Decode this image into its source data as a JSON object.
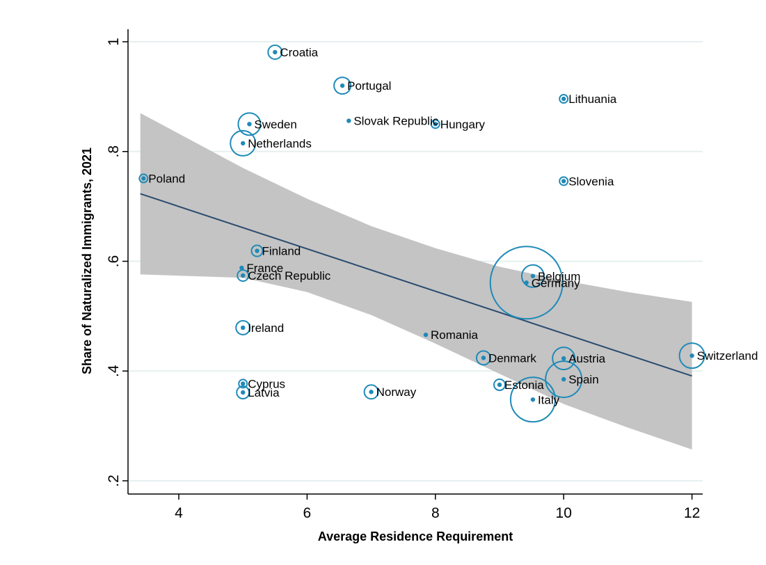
{
  "chart_data": {
    "type": "scatter",
    "title": "",
    "xlabel": "Average Residence Requirement",
    "ylabel": "Share of Naturalized Immigrants, 2021",
    "xlim": [
      3.3,
      12.2
    ],
    "ylim": [
      0.18,
      1.02
    ],
    "xticks": [
      4,
      6,
      8,
      10,
      12
    ],
    "xtick_labels": [
      "4",
      "6",
      "8",
      "10",
      "12"
    ],
    "yticks": [
      0.2,
      0.4,
      0.6,
      0.8,
      1.0
    ],
    "ytick_labels": [
      ".2",
      ".4",
      ".6",
      ".8",
      "1"
    ],
    "grid": "horizontal",
    "colors": {
      "marker": "#1f8ab8",
      "fit_line": "#2b4b6f",
      "ci_band": "#c4c4c4",
      "grid": "#e6f0f0"
    },
    "fit_line": {
      "x": [
        3.4,
        12.0
      ],
      "y": [
        0.723,
        0.391
      ]
    },
    "confidence_band": {
      "x": [
        3.4,
        5.0,
        6.0,
        7.0,
        8.0,
        9.0,
        10.0,
        11.0,
        12.0
      ],
      "upper": [
        0.87,
        0.77,
        0.714,
        0.664,
        0.624,
        0.59,
        0.565,
        0.544,
        0.526
      ],
      "lower": [
        0.576,
        0.57,
        0.544,
        0.502,
        0.45,
        0.395,
        0.34,
        0.297,
        0.257
      ]
    },
    "points": [
      {
        "label": "Croatia",
        "x": 5.5,
        "y": 0.981,
        "r": 10
      },
      {
        "label": "Portugal",
        "x": 6.55,
        "y": 0.92,
        "r": 12
      },
      {
        "label": "Lithuania",
        "x": 10.0,
        "y": 0.896,
        "r": 6
      },
      {
        "label": "Sweden",
        "x": 5.1,
        "y": 0.85,
        "r": 16
      },
      {
        "label": "Slovak Republic",
        "x": 6.65,
        "y": 0.856,
        "r": 0
      },
      {
        "label": "Hungary",
        "x": 8.0,
        "y": 0.85,
        "r": 6
      },
      {
        "label": "Netherlands",
        "x": 5.0,
        "y": 0.815,
        "r": 18
      },
      {
        "label": "Poland",
        "x": 3.45,
        "y": 0.751,
        "r": 6
      },
      {
        "label": "Slovenia",
        "x": 10.0,
        "y": 0.746,
        "r": 6
      },
      {
        "label": "Finland",
        "x": 5.22,
        "y": 0.619,
        "r": 8
      },
      {
        "label": "France",
        "x": 4.98,
        "y": 0.588,
        "r": 0
      },
      {
        "label": "Czech Republic",
        "x": 5.0,
        "y": 0.574,
        "r": 8
      },
      {
        "label": "Belgium",
        "x": 9.52,
        "y": 0.573,
        "r": 16
      },
      {
        "label": "Germany",
        "x": 9.42,
        "y": 0.561,
        "r": 52
      },
      {
        "label": "Ireland",
        "x": 5.0,
        "y": 0.479,
        "r": 10
      },
      {
        "label": "Romania",
        "x": 7.85,
        "y": 0.466,
        "r": 0
      },
      {
        "label": "Denmark",
        "x": 8.75,
        "y": 0.424,
        "r": 10
      },
      {
        "label": "Austria",
        "x": 10.0,
        "y": 0.423,
        "r": 16
      },
      {
        "label": "Switzerland",
        "x": 12.0,
        "y": 0.428,
        "r": 18
      },
      {
        "label": "Spain",
        "x": 10.0,
        "y": 0.385,
        "r": 26
      },
      {
        "label": "Estonia",
        "x": 9.0,
        "y": 0.375,
        "r": 8
      },
      {
        "label": "Cyprus",
        "x": 5.0,
        "y": 0.377,
        "r": 6
      },
      {
        "label": "Latvia",
        "x": 5.0,
        "y": 0.361,
        "r": 9
      },
      {
        "label": "Norway",
        "x": 7.0,
        "y": 0.362,
        "r": 10
      },
      {
        "label": "Italy",
        "x": 9.52,
        "y": 0.348,
        "r": 32
      }
    ]
  }
}
